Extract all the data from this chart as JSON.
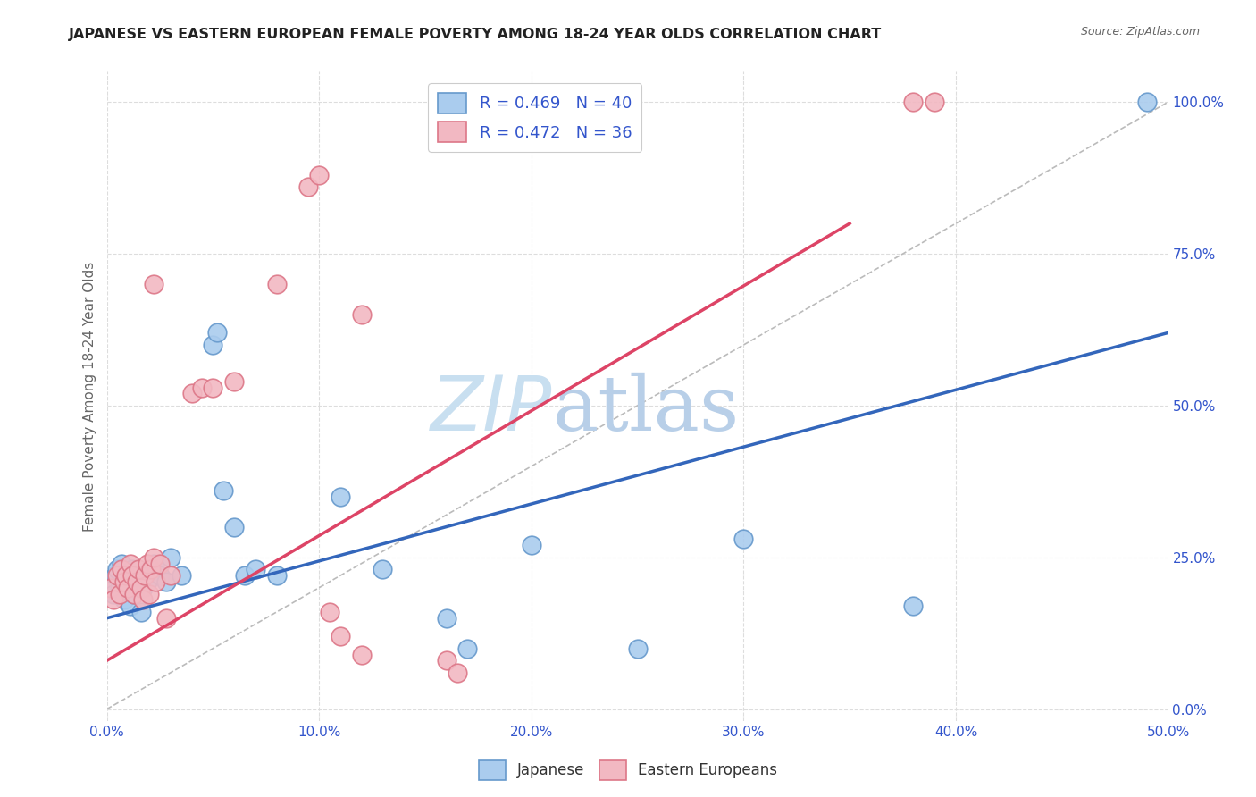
{
  "title": "JAPANESE VS EASTERN EUROPEAN FEMALE POVERTY AMONG 18-24 YEAR OLDS CORRELATION CHART",
  "source": "Source: ZipAtlas.com",
  "ylabel": "Female Poverty Among 18-24 Year Olds",
  "xlim": [
    0.0,
    0.5
  ],
  "ylim": [
    -0.02,
    1.05
  ],
  "xticks": [
    0.0,
    0.1,
    0.2,
    0.3,
    0.4,
    0.5
  ],
  "yticks_right": [
    0.0,
    0.25,
    0.5,
    0.75,
    1.0
  ],
  "ytick_labels_right": [
    "0.0%",
    "25.0%",
    "50.0%",
    "75.0%",
    "100.0%"
  ],
  "xtick_labels": [
    "0.0%",
    "10.0%",
    "20.0%",
    "30.0%",
    "40.0%",
    "50.0%"
  ],
  "background_color": "#ffffff",
  "grid_color": "#dddddd",
  "watermark_zip": "ZIP",
  "watermark_atlas": "atlas",
  "watermark_color": "#c8dff0",
  "legend_color": "#3355cc",
  "japanese_edge": "#6699cc",
  "japanese_fill": "#aaccee",
  "eastern_edge": "#dd7788",
  "eastern_fill": "#f2b8c2",
  "blue_line_color": "#3366bb",
  "pink_line_color": "#dd4466",
  "diag_color": "#bbbbbb",
  "japanese_x": [
    0.002,
    0.003,
    0.004,
    0.005,
    0.006,
    0.007,
    0.008,
    0.009,
    0.01,
    0.011,
    0.012,
    0.013,
    0.014,
    0.015,
    0.016,
    0.017,
    0.018,
    0.019,
    0.02,
    0.022,
    0.025,
    0.028,
    0.03,
    0.035,
    0.05,
    0.052,
    0.055,
    0.06,
    0.065,
    0.07,
    0.08,
    0.11,
    0.13,
    0.16,
    0.17,
    0.2,
    0.25,
    0.3,
    0.38,
    0.49
  ],
  "japanese_y": [
    0.21,
    0.19,
    0.22,
    0.23,
    0.2,
    0.24,
    0.18,
    0.22,
    0.2,
    0.17,
    0.23,
    0.19,
    0.21,
    0.22,
    0.16,
    0.2,
    0.22,
    0.21,
    0.23,
    0.24,
    0.22,
    0.21,
    0.25,
    0.22,
    0.6,
    0.62,
    0.36,
    0.3,
    0.22,
    0.23,
    0.22,
    0.35,
    0.23,
    0.15,
    0.1,
    0.27,
    0.1,
    0.28,
    0.17,
    1.0
  ],
  "eastern_x": [
    0.002,
    0.003,
    0.005,
    0.006,
    0.007,
    0.008,
    0.009,
    0.01,
    0.011,
    0.012,
    0.013,
    0.014,
    0.015,
    0.016,
    0.017,
    0.018,
    0.019,
    0.02,
    0.021,
    0.022,
    0.023,
    0.025,
    0.028,
    0.03,
    0.04,
    0.045,
    0.05,
    0.06,
    0.08,
    0.095,
    0.1,
    0.105,
    0.11,
    0.12,
    0.16,
    0.165
  ],
  "eastern_y": [
    0.2,
    0.18,
    0.22,
    0.19,
    0.23,
    0.21,
    0.22,
    0.2,
    0.24,
    0.22,
    0.19,
    0.21,
    0.23,
    0.2,
    0.18,
    0.22,
    0.24,
    0.19,
    0.23,
    0.25,
    0.21,
    0.24,
    0.15,
    0.22,
    0.52,
    0.53,
    0.53,
    0.54,
    0.7,
    0.86,
    0.88,
    0.16,
    0.12,
    0.09,
    0.08,
    0.06
  ],
  "pink_outlier1_x": [
    0.02
  ],
  "pink_outlier1_y": [
    0.7
  ],
  "pink_outlier2_x": [
    0.12
  ],
  "pink_outlier2_y": [
    0.65
  ],
  "blue_line_x": [
    0.0,
    0.5
  ],
  "blue_line_y": [
    0.15,
    0.62
  ],
  "pink_line_x": [
    0.0,
    0.35
  ],
  "pink_line_y": [
    0.08,
    0.8
  ]
}
